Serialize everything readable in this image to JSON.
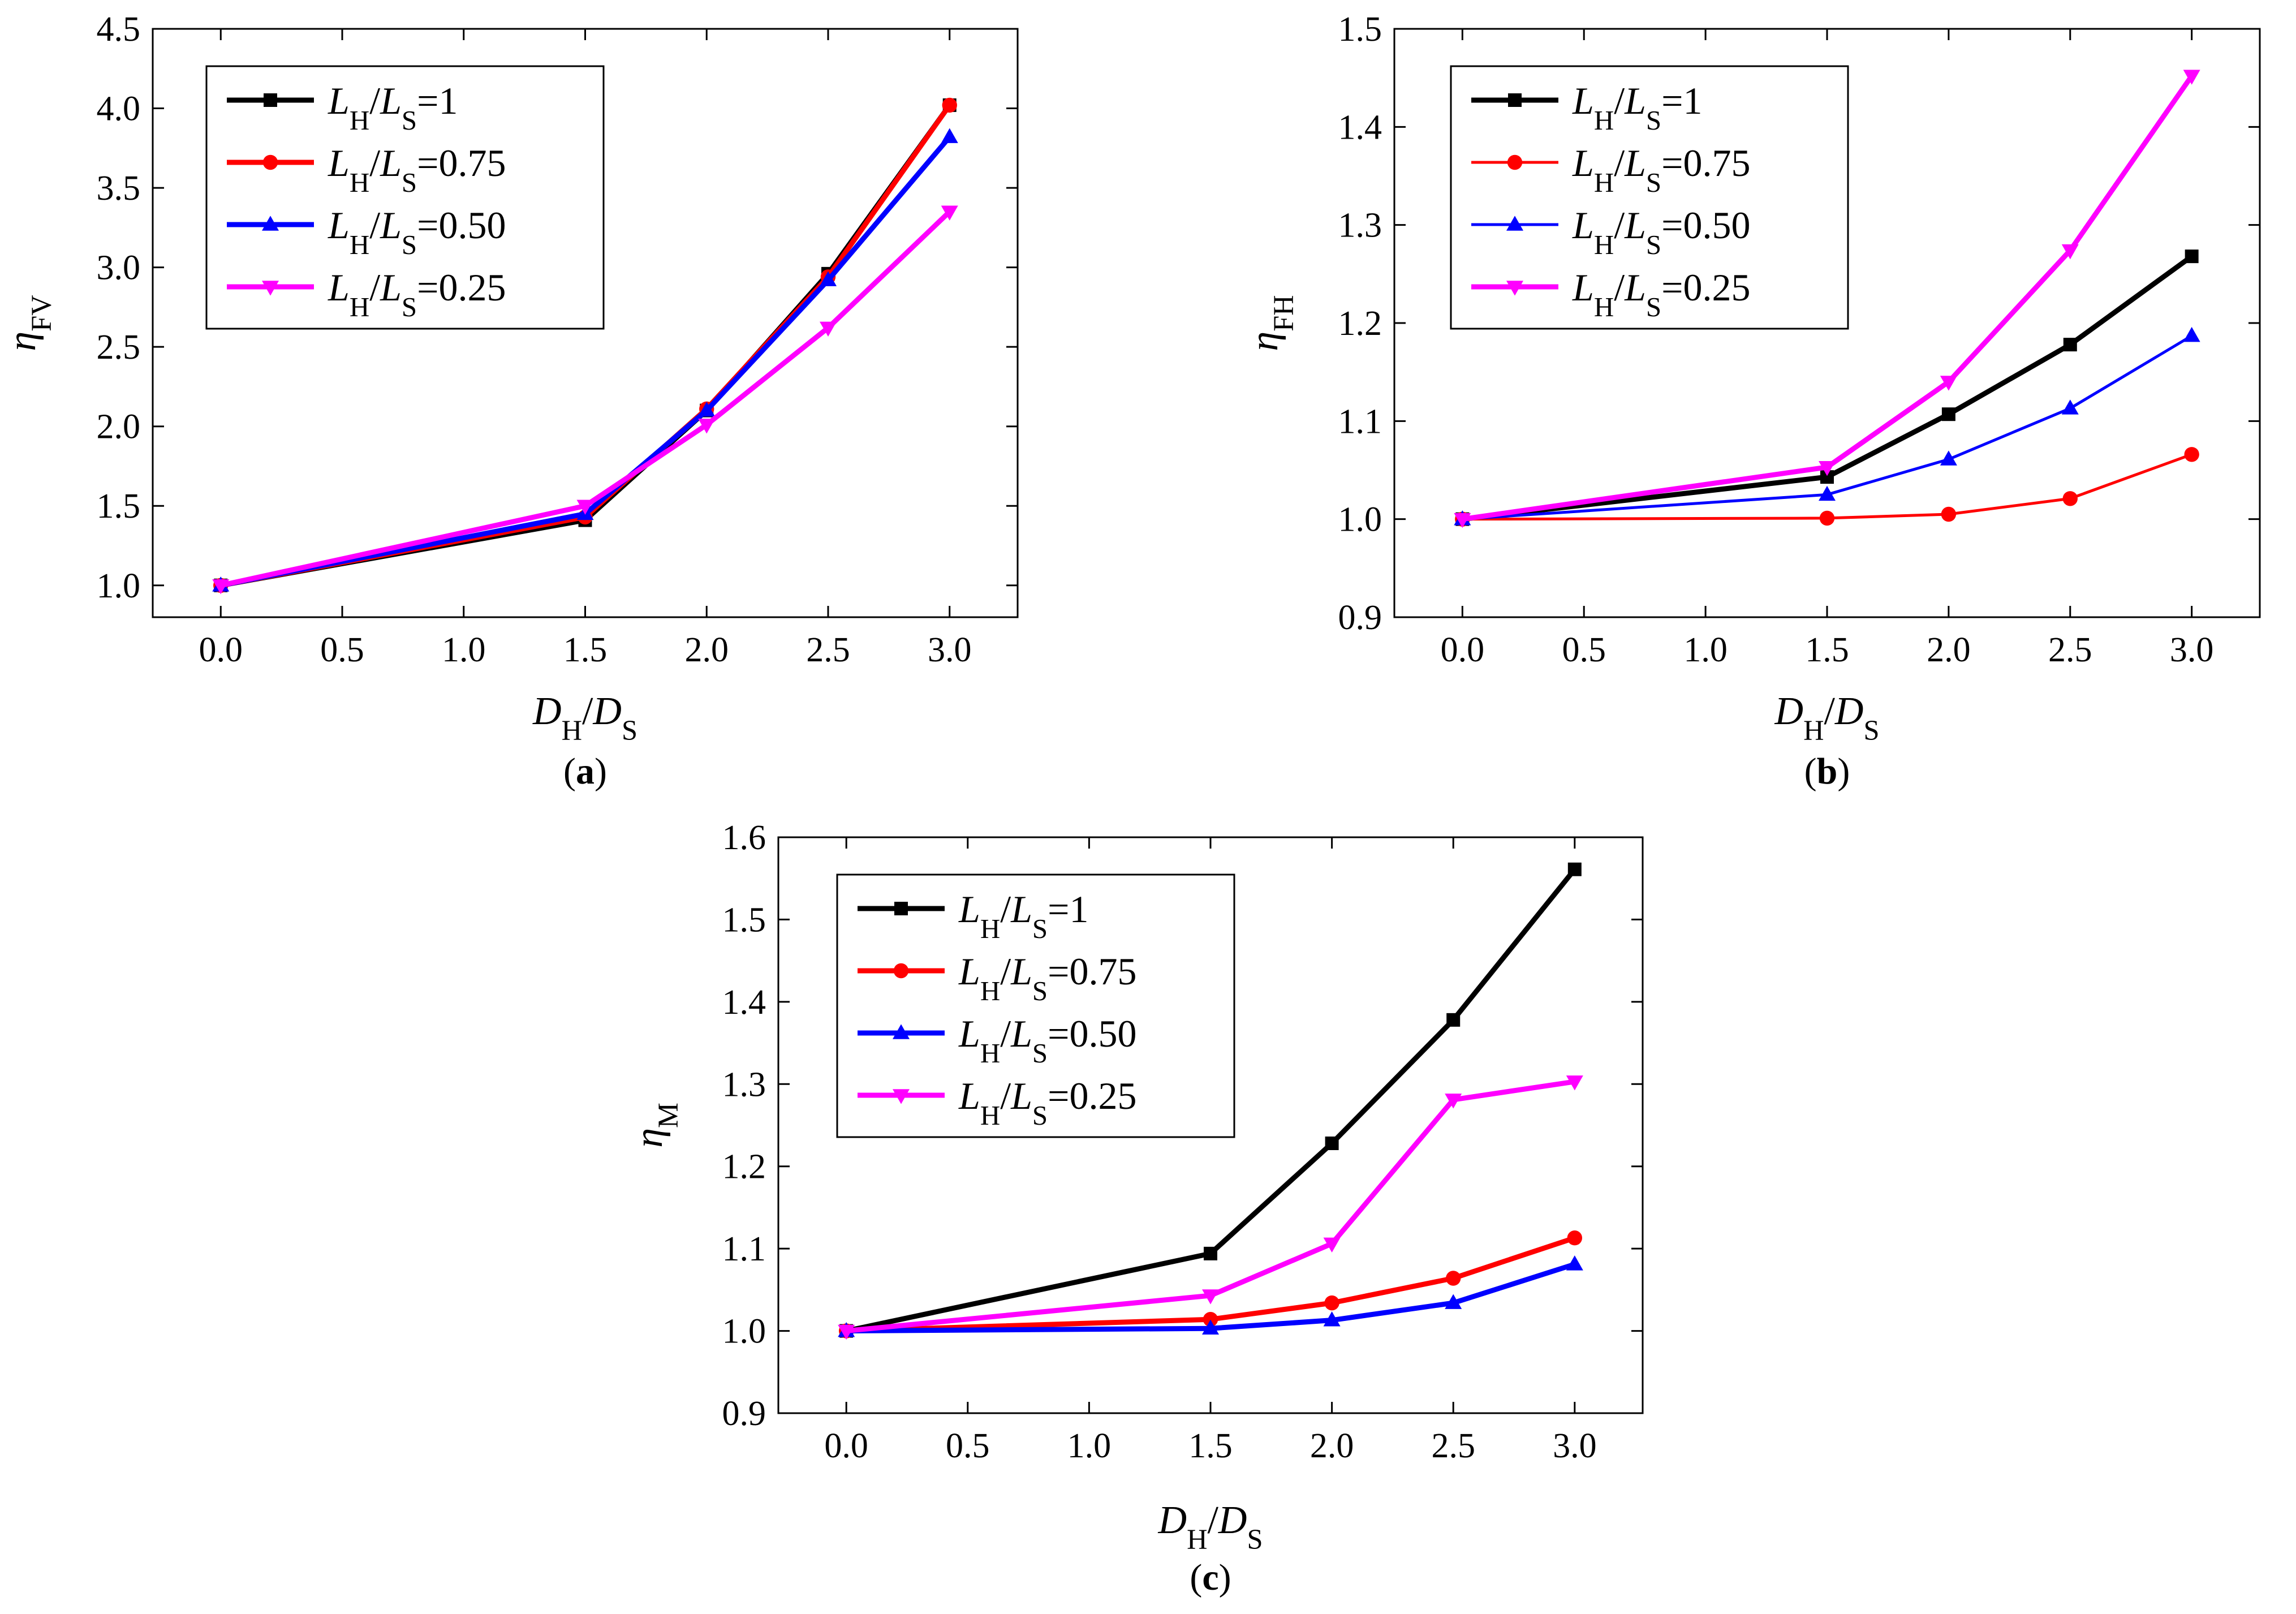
{
  "series_style": {
    "colors": [
      "#000000",
      "#ff0000",
      "#0000ff",
      "#ff00ff"
    ],
    "markers": [
      "square",
      "circle",
      "triangle-up",
      "triangle-down"
    ]
  },
  "chart_data": [
    {
      "type": "line",
      "panel_label": "a",
      "title": "",
      "xlabel": "D_H/D_S",
      "ylabel": "η_FV",
      "xlim": [
        -0.28,
        3.28
      ],
      "ylim": [
        0.8,
        4.5
      ],
      "xticks": [
        "0.0",
        "0.5",
        "1.0",
        "1.5",
        "2.0",
        "2.5",
        "3.0"
      ],
      "yticks": [
        "1.0",
        "1.5",
        "2.0",
        "2.5",
        "3.0",
        "3.5",
        "4.0",
        "4.5"
      ],
      "legend_position": "top-left",
      "x": [
        0,
        1.5,
        2.0,
        2.5,
        3.0
      ],
      "series": [
        {
          "name": "L_H/L_S=1",
          "values": [
            1.0,
            1.41,
            2.1,
            2.96,
            4.02
          ]
        },
        {
          "name": "L_H/L_S=0.75",
          "values": [
            1.0,
            1.43,
            2.11,
            2.94,
            4.02
          ]
        },
        {
          "name": "L_H/L_S=0.50",
          "values": [
            1.0,
            1.45,
            2.1,
            2.92,
            3.82
          ]
        },
        {
          "name": "L_H/L_S=0.25",
          "values": [
            1.0,
            1.5,
            2.01,
            2.62,
            3.35
          ]
        }
      ]
    },
    {
      "type": "line",
      "panel_label": "b",
      "title": "",
      "xlabel": "D_H/D_S",
      "ylabel": "η_FH",
      "xlim": [
        -0.28,
        3.28
      ],
      "ylim": [
        0.9,
        1.5
      ],
      "xticks": [
        "0.0",
        "0.5",
        "1.0",
        "1.5",
        "2.0",
        "2.5",
        "3.0"
      ],
      "yticks": [
        "0.9",
        "1.0",
        "1.1",
        "1.2",
        "1.3",
        "1.4",
        "1.5"
      ],
      "legend_position": "top-left",
      "x": [
        0,
        1.5,
        2.0,
        2.5,
        3.0
      ],
      "series": [
        {
          "name": "L_H/L_S=1",
          "values": [
            1.0,
            1.043,
            1.107,
            1.178,
            1.268
          ]
        },
        {
          "name": "L_H/L_S=0.75",
          "values": [
            1.0,
            1.001,
            1.005,
            1.021,
            1.066
          ]
        },
        {
          "name": "L_H/L_S=0.50",
          "values": [
            1.0,
            1.025,
            1.061,
            1.113,
            1.187
          ]
        },
        {
          "name": "L_H/L_S=0.25",
          "values": [
            1.0,
            1.053,
            1.14,
            1.274,
            1.452
          ]
        }
      ]
    },
    {
      "type": "line",
      "panel_label": "c",
      "title": "",
      "xlabel": "D_H/D_S",
      "ylabel": "η_M",
      "xlim": [
        -0.28,
        3.28
      ],
      "ylim": [
        0.9,
        1.6
      ],
      "xticks": [
        "0.0",
        "0.5",
        "1.0",
        "1.5",
        "2.0",
        "2.5",
        "3.0"
      ],
      "yticks": [
        "0.9",
        "1.0",
        "1.1",
        "1.2",
        "1.3",
        "1.4",
        "1.5",
        "1.6"
      ],
      "legend_position": "top-left",
      "x": [
        0,
        1.5,
        2.0,
        2.5,
        3.0
      ],
      "series": [
        {
          "name": "L_H/L_S=1",
          "values": [
            1.0,
            1.094,
            1.228,
            1.378,
            1.561
          ]
        },
        {
          "name": "L_H/L_S=0.75",
          "values": [
            1.0,
            1.014,
            1.034,
            1.064,
            1.113
          ]
        },
        {
          "name": "L_H/L_S=0.50",
          "values": [
            1.0,
            1.003,
            1.013,
            1.034,
            1.081
          ]
        },
        {
          "name": "L_H/L_S=0.25",
          "values": [
            1.0,
            1.043,
            1.106,
            1.281,
            1.303
          ]
        }
      ]
    }
  ]
}
